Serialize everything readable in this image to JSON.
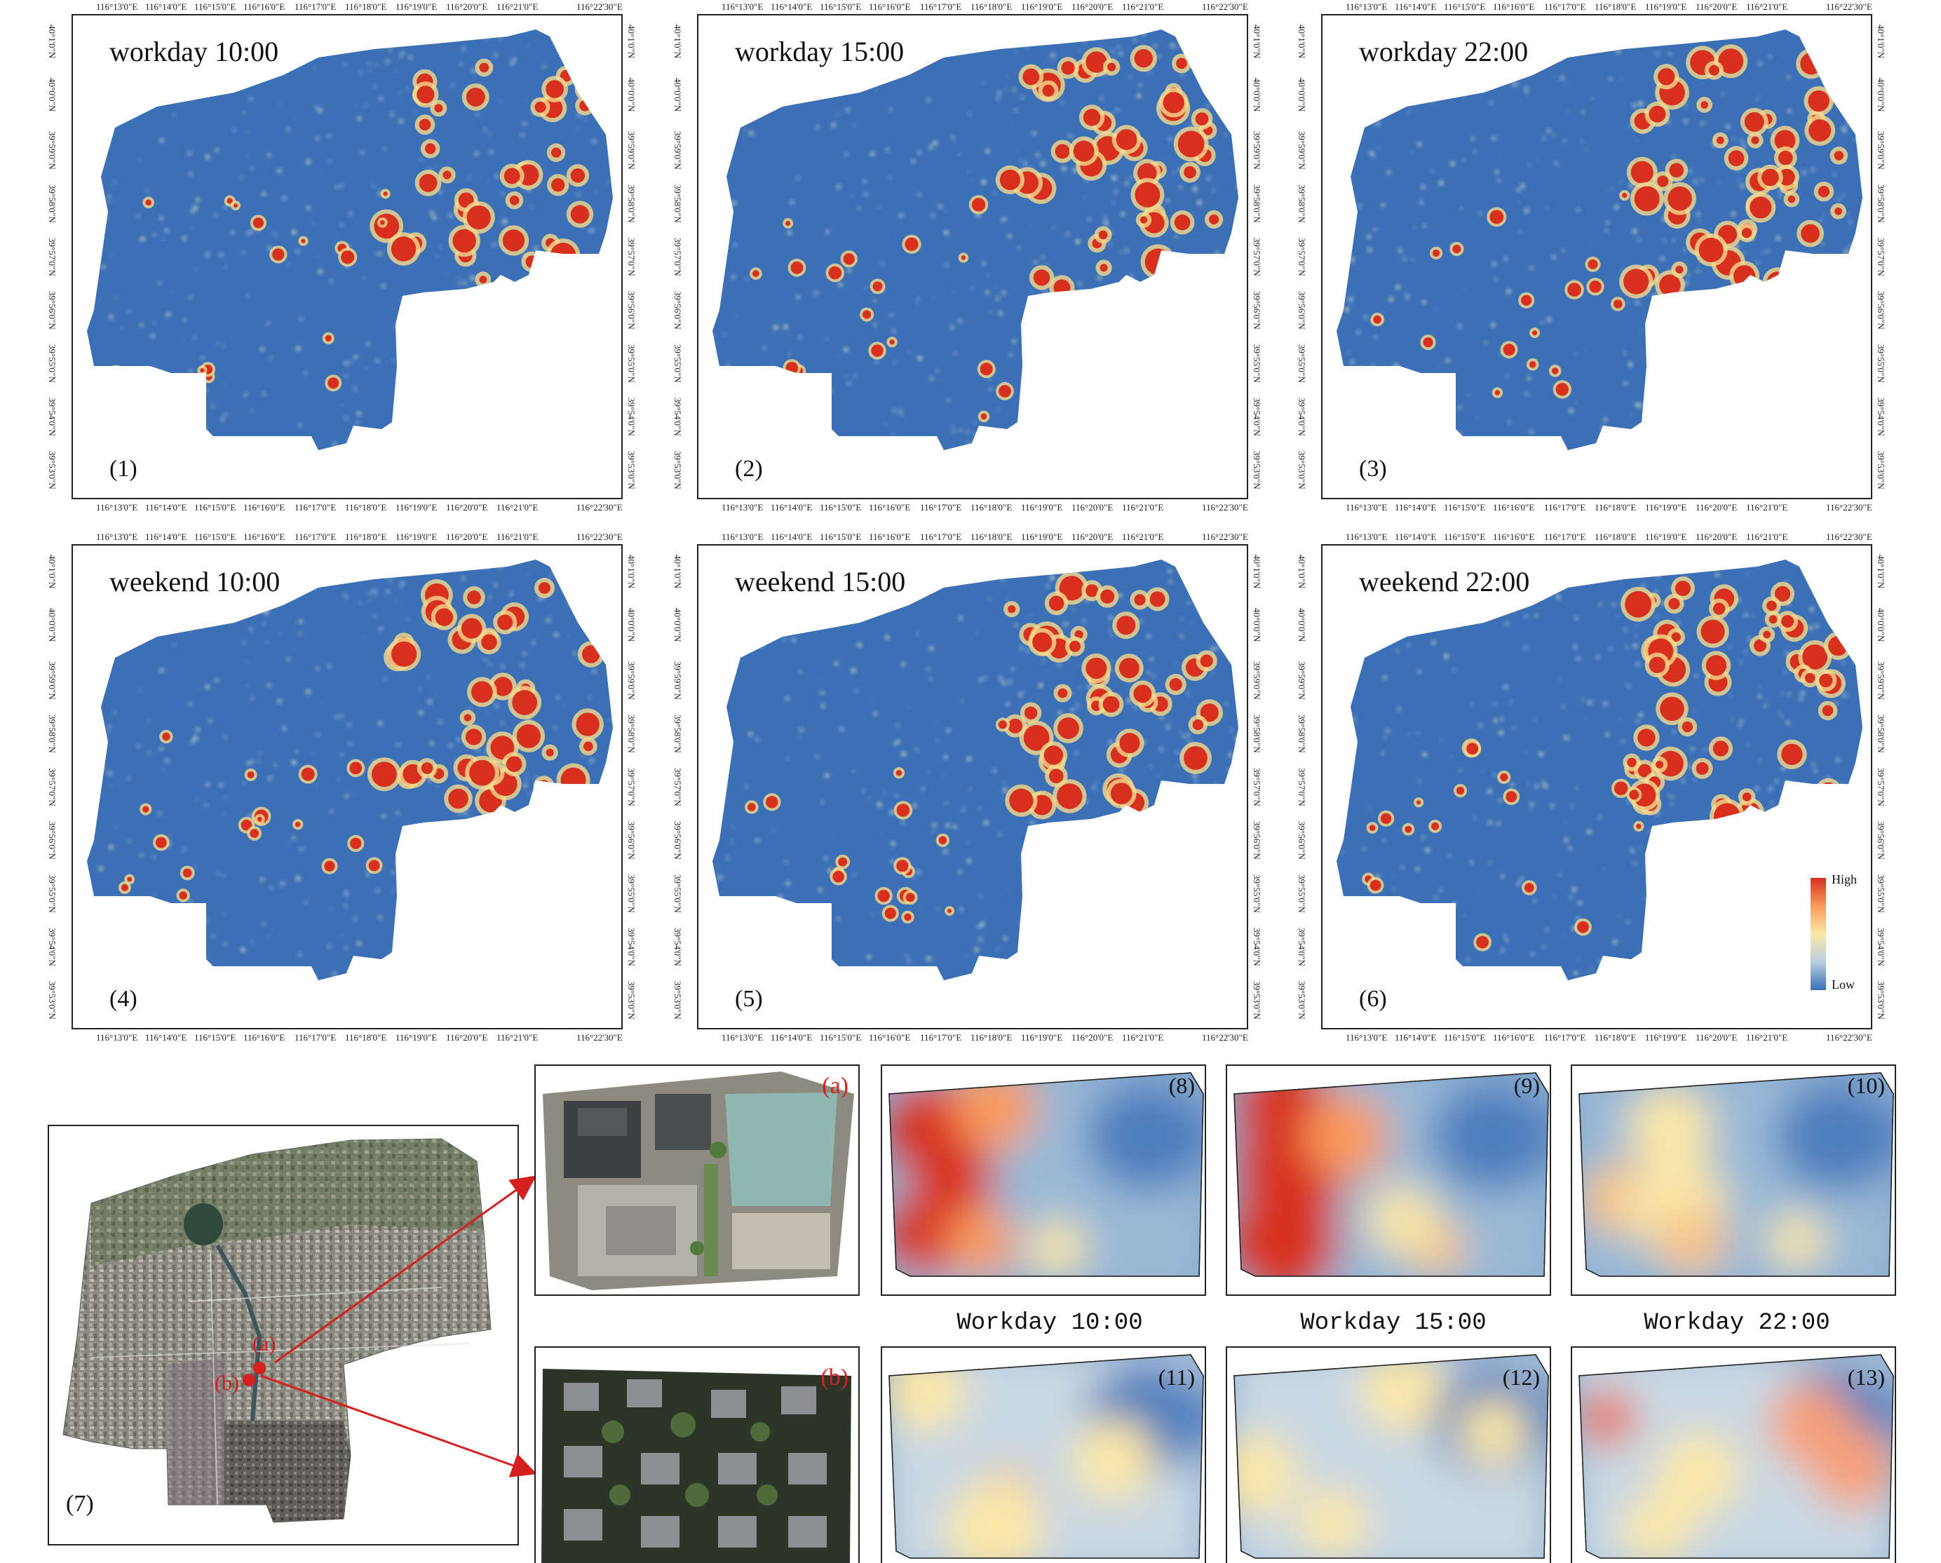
{
  "panels": [
    {
      "title": "workday 10:00",
      "label": "(1)"
    },
    {
      "title": "workday 15:00",
      "label": "(2)"
    },
    {
      "title": "workday 22:00",
      "label": "(3)"
    },
    {
      "title": "weekend 10:00",
      "label": "(4)"
    },
    {
      "title": "weekend 15:00",
      "label": "(5)"
    },
    {
      "title": "weekend 22:00",
      "label": "(6)"
    }
  ],
  "lon_ticks": [
    "116°13'0\"E",
    "116°14'0\"E",
    "116°15'0\"E",
    "116°16'0\"E",
    "116°17'0\"E",
    "116°18'0\"E",
    "116°19'0\"E",
    "116°20'0\"E",
    "116°21'0\"E",
    "116°22'30\"E"
  ],
  "lat_ticks": [
    "40°1'0\"N",
    "40°0'0\"N",
    "39°59'0\"N",
    "39°58'0\"N",
    "39°57'0\"N",
    "39°56'0\"N",
    "39°55'0\"N",
    "39°54'0\"N",
    "39°53'0\"N"
  ],
  "legend": {
    "high": "High",
    "low": "Low"
  },
  "overview": {
    "label": "(7)",
    "marker_a": "(a)",
    "marker_b": "(b)"
  },
  "insets": {
    "a_label": "(a)",
    "b_label": "(b)"
  },
  "detail_labels": [
    "(8)",
    "(9)",
    "(10)",
    "(11)",
    "(12)",
    "(13)"
  ],
  "captions": [
    "Workday 10:00",
    "Workday 15:00",
    "Workday 22:00"
  ],
  "colors": {
    "low": "#3b6fb6",
    "mid": "#fbe7a7",
    "high": "#d7301f",
    "red_marker": "#d62020"
  }
}
